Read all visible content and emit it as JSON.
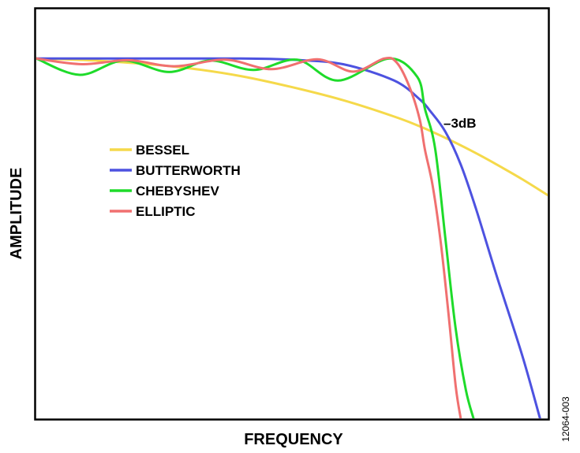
{
  "chart_data": {
    "type": "line",
    "xlabel": "FREQUENCY",
    "ylabel": "AMPLITUDE",
    "xlim": [
      0,
      1
    ],
    "ylim": [
      0,
      1
    ],
    "grid": false,
    "legend_position": "center-left",
    "annotation": "–3dB",
    "figure_id": "12064-003",
    "series": [
      {
        "name": "BESSEL",
        "color": "#f5d94a",
        "x": [
          0,
          0.1,
          0.2,
          0.3,
          0.4,
          0.5,
          0.6,
          0.7,
          0.75,
          0.8,
          0.85,
          0.9,
          0.95,
          1.0
        ],
        "y": [
          0.88,
          0.876,
          0.868,
          0.856,
          0.837,
          0.81,
          0.778,
          0.738,
          0.714,
          0.686,
          0.655,
          0.621,
          0.585,
          0.546
        ]
      },
      {
        "name": "BUTTERWORTH",
        "color": "#4d52e0",
        "x": [
          0,
          0.2,
          0.4,
          0.5,
          0.6,
          0.7,
          0.75,
          0.77,
          0.8,
          0.83,
          0.86,
          0.9,
          0.95,
          0.985
        ],
        "y": [
          0.88,
          0.88,
          0.88,
          0.877,
          0.866,
          0.826,
          0.78,
          0.752,
          0.701,
          0.621,
          0.512,
          0.35,
          0.155,
          0.0
        ]
      },
      {
        "name": "CHEBYSHEV",
        "color": "#1edb2a",
        "x": [
          0,
          0.085,
          0.17,
          0.26,
          0.34,
          0.425,
          0.51,
          0.59,
          0.69,
          0.745,
          0.76,
          0.78,
          0.8,
          0.82,
          0.84,
          0.855
        ],
        "y": [
          0.88,
          0.84,
          0.875,
          0.847,
          0.875,
          0.852,
          0.877,
          0.826,
          0.88,
          0.835,
          0.757,
          0.66,
          0.44,
          0.22,
          0.07,
          0.0
        ]
      },
      {
        "name": "ELLIPTIC",
        "color": "#f07070",
        "x": [
          0,
          0.09,
          0.18,
          0.27,
          0.37,
          0.46,
          0.55,
          0.62,
          0.68,
          0.705,
          0.73,
          0.75,
          0.76,
          0.775,
          0.79,
          0.805,
          0.82,
          0.83
        ],
        "y": [
          0.88,
          0.866,
          0.876,
          0.861,
          0.877,
          0.854,
          0.878,
          0.848,
          0.88,
          0.87,
          0.81,
          0.73,
          0.657,
          0.57,
          0.44,
          0.27,
          0.08,
          0.0
        ]
      }
    ]
  }
}
